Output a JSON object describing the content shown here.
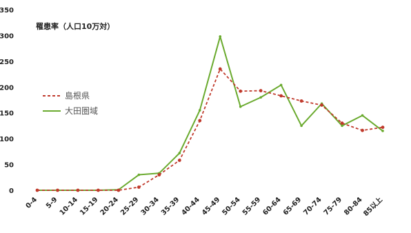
{
  "chart_data": {
    "type": "line",
    "ylabel": "罹患率（人口10万対）",
    "categories": [
      "0-4",
      "5-9",
      "10-14",
      "15-19",
      "20-24",
      "25-29",
      "30-34",
      "35-39",
      "40-44",
      "45-49",
      "50-54",
      "55-59",
      "60-64",
      "65-69",
      "70-74",
      "75-79",
      "80-84",
      "85以上"
    ],
    "ylim": [
      0,
      350
    ],
    "yticks": [
      "0",
      "50",
      "100",
      "150",
      "200",
      "250",
      "300",
      "350"
    ],
    "grid": false,
    "legend_position": "left",
    "series": [
      {
        "name": "島根県",
        "color": "#c0392b",
        "style": "dashed-dotted",
        "values": [
          0,
          0,
          0,
          0,
          0,
          6,
          30,
          58,
          135,
          235,
          192,
          193,
          183,
          173,
          165,
          130,
          116,
          122
        ]
      },
      {
        "name": "大田圏域",
        "color": "#6aaa2e",
        "style": "solid",
        "values": [
          0,
          0,
          0,
          0,
          1,
          30,
          33,
          72,
          155,
          298,
          162,
          180,
          204,
          125,
          168,
          125,
          145,
          115
        ]
      }
    ]
  }
}
